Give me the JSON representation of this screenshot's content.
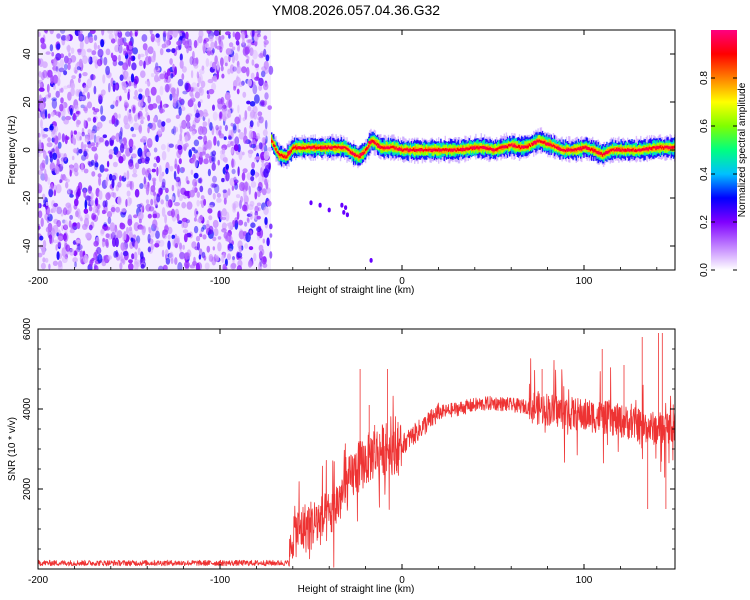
{
  "title": "YM08.2026.057.04.36.G32",
  "chart_data": [
    {
      "type": "heatmap",
      "xlabel": "Height of straight line (km)",
      "ylabel": "Frequency (Hz)",
      "xlim": [
        -200,
        150
      ],
      "ylim": [
        -50,
        50
      ],
      "xticks": [
        -200,
        -100,
        0,
        100
      ],
      "yticks": [
        -40,
        -20,
        0,
        20,
        40
      ],
      "noise_region_x": [
        -200,
        -72
      ],
      "signal_track": [
        [
          -72,
          4
        ],
        [
          -68,
          -2
        ],
        [
          -64,
          -3
        ],
        [
          -60,
          1
        ],
        [
          -50,
          1
        ],
        [
          -40,
          1
        ],
        [
          -32,
          1
        ],
        [
          -28,
          -1
        ],
        [
          -24,
          -3
        ],
        [
          -20,
          0
        ],
        [
          -17,
          4
        ],
        [
          -15,
          3
        ],
        [
          -12,
          1
        ],
        [
          -5,
          1
        ],
        [
          0,
          0
        ],
        [
          10,
          0
        ],
        [
          20,
          0
        ],
        [
          30,
          0
        ],
        [
          40,
          1
        ],
        [
          45,
          1
        ],
        [
          50,
          0
        ],
        [
          55,
          1
        ],
        [
          60,
          2
        ],
        [
          65,
          1
        ],
        [
          70,
          2
        ],
        [
          75,
          4
        ],
        [
          78,
          3
        ],
        [
          82,
          2
        ],
        [
          88,
          0
        ],
        [
          95,
          0
        ],
        [
          100,
          1
        ],
        [
          105,
          0
        ],
        [
          110,
          -2
        ],
        [
          115,
          0
        ],
        [
          120,
          0
        ],
        [
          130,
          0
        ],
        [
          140,
          1
        ],
        [
          150,
          1
        ]
      ],
      "stray_points": [
        [
          -50,
          -22
        ],
        [
          -45,
          -23
        ],
        [
          -40,
          -25
        ],
        [
          -33,
          -23
        ],
        [
          -31,
          -24
        ],
        [
          -32,
          -26
        ],
        [
          -30,
          -27
        ],
        [
          -17,
          -46
        ]
      ],
      "colorbar": {
        "label": "Normalized spectral amplitude",
        "ticks": [
          "0.0",
          "0.2",
          "0.4",
          "0.6",
          "0.8"
        ],
        "tick_values": [
          0.0,
          0.2,
          0.4,
          0.6,
          0.8
        ],
        "range": [
          0,
          1
        ],
        "colors": [
          "#ffffff",
          "#c080ff",
          "#8000ff",
          "#0000ff",
          "#00c0ff",
          "#00ff80",
          "#80ff00",
          "#ffff00",
          "#ff8000",
          "#ff0000",
          "#ff0080"
        ]
      }
    },
    {
      "type": "line",
      "xlabel": "Height of straight line (km)",
      "ylabel": "SNR (10 * v/v)",
      "xlim": [
        -200,
        150
      ],
      "ylim": [
        0,
        6000
      ],
      "xticks": [
        -200,
        -100,
        0,
        100
      ],
      "yticks": [
        2000,
        4000,
        6000
      ],
      "series": [
        {
          "name": "SNR",
          "color": "#ee3333",
          "profile": [
            [
              -200,
              150
            ],
            [
              -62,
              150
            ],
            [
              -60,
              900
            ],
            [
              -50,
              1100
            ],
            [
              -40,
              1300
            ],
            [
              -35,
              1700
            ],
            [
              -30,
              2100
            ],
            [
              -25,
              2500
            ],
            [
              -20,
              2700
            ],
            [
              -15,
              2900
            ],
            [
              -10,
              3000
            ],
            [
              -5,
              3000
            ],
            [
              0,
              3100
            ],
            [
              5,
              3300
            ],
            [
              10,
              3500
            ],
            [
              15,
              3700
            ],
            [
              20,
              3900
            ],
            [
              30,
              4000
            ],
            [
              40,
              4100
            ],
            [
              50,
              4150
            ],
            [
              60,
              4100
            ],
            [
              70,
              4050
            ],
            [
              80,
              4000
            ],
            [
              90,
              3900
            ],
            [
              100,
              3850
            ],
            [
              110,
              3800
            ],
            [
              120,
              3700
            ],
            [
              130,
              3600
            ],
            [
              140,
              3500
            ],
            [
              150,
              3600
            ]
          ],
          "spikes": [
            [
              -23,
              5000
            ],
            [
              -8,
              5000
            ],
            [
              -18,
              4100
            ],
            [
              -15,
              3600
            ],
            [
              77,
              5000
            ],
            [
              110,
              5500
            ],
            [
              122,
              5100
            ],
            [
              132,
              5800
            ],
            [
              141,
              5900
            ],
            [
              143,
              5900
            ],
            [
              135,
              1500
            ],
            [
              145,
              1500
            ]
          ]
        }
      ]
    }
  ]
}
